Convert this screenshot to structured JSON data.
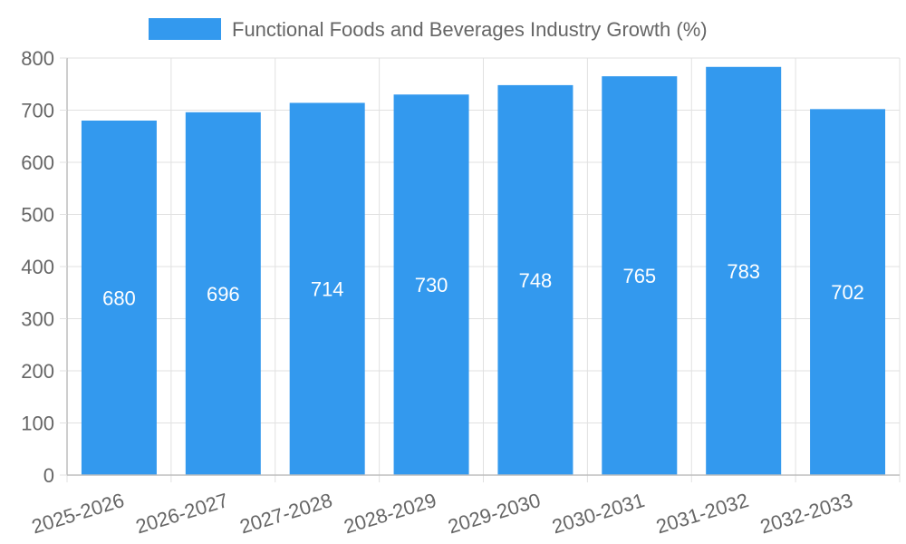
{
  "chart_data": {
    "type": "bar",
    "title": "",
    "legend": [
      "Functional Foods and Beverages Industry Growth (%)"
    ],
    "legend_position": "top-center",
    "categories": [
      "2025-2026",
      "2026-2027",
      "2027-2028",
      "2028-2029",
      "2029-2030",
      "2030-2031",
      "2031-2032",
      "2032-2033"
    ],
    "series": [
      {
        "name": "Functional Foods and Beverages Industry Growth (%)",
        "values": [
          680,
          696,
          714,
          730,
          748,
          765,
          783,
          702
        ],
        "color": "#3399ee"
      }
    ],
    "xlabel": "",
    "ylabel": "",
    "ylim": [
      0,
      800
    ],
    "yticks": [
      0,
      100,
      200,
      300,
      400,
      500,
      600,
      700,
      800
    ],
    "grid": true,
    "data_labels": true
  }
}
